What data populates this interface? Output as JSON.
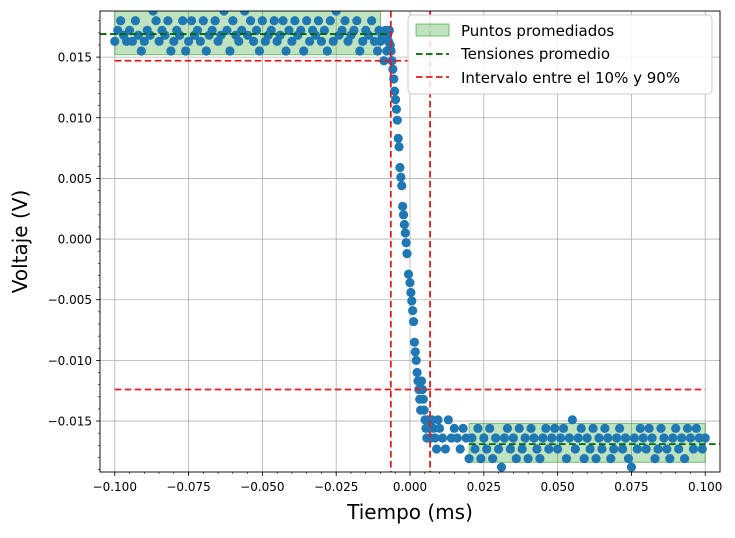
{
  "chart_data": {
    "type": "scatter",
    "xlabel": "Tiempo (ms)",
    "ylabel": "Voltaje (V)",
    "xlim": [
      -0.105,
      0.105
    ],
    "ylim": [
      -0.0192,
      0.0188
    ],
    "x_ticks": [
      -0.1,
      -0.075,
      -0.05,
      -0.025,
      0.0,
      0.025,
      0.05,
      0.075,
      0.1
    ],
    "x_tick_labels": [
      "−0.100",
      "−0.075",
      "−0.050",
      "−0.025",
      "0.000",
      "0.025",
      "0.050",
      "0.075",
      "0.100"
    ],
    "y_ticks": [
      -0.015,
      -0.01,
      -0.005,
      0.0,
      0.005,
      0.01,
      0.015
    ],
    "y_tick_labels": [
      "−0.015",
      "−0.010",
      "−0.005",
      "0.000",
      "0.005",
      "0.010",
      "0.015"
    ],
    "grid": true,
    "legend_position": "top-right",
    "legend": [
      {
        "label": "Puntos promediados",
        "kind": "patch",
        "color": "#2ca02c"
      },
      {
        "label": "Tensiones promedio",
        "kind": "dashed-line",
        "color": "#006400"
      },
      {
        "label": "Intervalo entre el 10% y 90%",
        "kind": "dashed-line",
        "color": "#e41a1c"
      }
    ],
    "colors": {
      "points": "#1f77b4",
      "shade": "#2ca02c",
      "mean_line": "#006400",
      "interval_line": "#e41a1c"
    },
    "averaged_regions": [
      {
        "x": [
          -0.1,
          -0.01
        ],
        "y": [
          0.0152,
          0.0188
        ]
      },
      {
        "x": [
          0.02,
          0.1
        ],
        "y": [
          -0.0184,
          -0.0152
        ]
      }
    ],
    "mean_voltages": [
      {
        "x": [
          -0.105,
          -0.006
        ],
        "y": 0.0169
      },
      {
        "x": [
          0.02,
          0.105
        ],
        "y": -0.0169
      }
    ],
    "interval_lines": {
      "vertical_x": [
        -0.0065,
        0.0068
      ],
      "horizontal": [
        {
          "x": [
            -0.1,
            0.0
          ],
          "y": 0.0147
        },
        {
          "x": [
            -0.1,
            0.1
          ],
          "y": -0.0124
        }
      ]
    },
    "series": [
      {
        "marker": "circle",
        "points": [
          [
            -0.1,
            0.0163
          ],
          [
            -0.099,
            0.0172
          ],
          [
            -0.098,
            0.018
          ],
          [
            -0.097,
            0.0168
          ],
          [
            -0.096,
            0.0163
          ],
          [
            -0.095,
            0.0172
          ],
          [
            -0.094,
            0.0163
          ],
          [
            -0.093,
            0.018
          ],
          [
            -0.092,
            0.0168
          ],
          [
            -0.091,
            0.0155
          ],
          [
            -0.09,
            0.0163
          ],
          [
            -0.089,
            0.0172
          ],
          [
            -0.088,
            0.0168
          ],
          [
            -0.087,
            0.0188
          ],
          [
            -0.086,
            0.018
          ],
          [
            -0.085,
            0.0163
          ],
          [
            -0.084,
            0.0172
          ],
          [
            -0.083,
            0.0168
          ],
          [
            -0.082,
            0.018
          ],
          [
            -0.081,
            0.0155
          ],
          [
            -0.08,
            0.0163
          ],
          [
            -0.079,
            0.0172
          ],
          [
            -0.078,
            0.0168
          ],
          [
            -0.077,
            0.018
          ],
          [
            -0.076,
            0.0155
          ],
          [
            -0.075,
            0.0163
          ],
          [
            -0.074,
            0.018
          ],
          [
            -0.073,
            0.0168
          ],
          [
            -0.072,
            0.0172
          ],
          [
            -0.071,
            0.0163
          ],
          [
            -0.07,
            0.018
          ],
          [
            -0.069,
            0.0155
          ],
          [
            -0.068,
            0.0168
          ],
          [
            -0.067,
            0.0172
          ],
          [
            -0.066,
            0.018
          ],
          [
            -0.065,
            0.0163
          ],
          [
            -0.064,
            0.0168
          ],
          [
            -0.063,
            0.0188
          ],
          [
            -0.062,
            0.0172
          ],
          [
            -0.061,
            0.0155
          ],
          [
            -0.06,
            0.018
          ],
          [
            -0.059,
            0.0168
          ],
          [
            -0.058,
            0.0163
          ],
          [
            -0.057,
            0.0172
          ],
          [
            -0.056,
            0.0188
          ],
          [
            -0.055,
            0.0168
          ],
          [
            -0.054,
            0.018
          ],
          [
            -0.053,
            0.0163
          ],
          [
            -0.052,
            0.0172
          ],
          [
            -0.051,
            0.0155
          ],
          [
            -0.05,
            0.018
          ],
          [
            -0.049,
            0.0163
          ],
          [
            -0.048,
            0.0168
          ],
          [
            -0.047,
            0.0172
          ],
          [
            -0.046,
            0.018
          ],
          [
            -0.045,
            0.0163
          ],
          [
            -0.044,
            0.0168
          ],
          [
            -0.043,
            0.018
          ],
          [
            -0.042,
            0.0155
          ],
          [
            -0.041,
            0.0172
          ],
          [
            -0.04,
            0.0163
          ],
          [
            -0.039,
            0.018
          ],
          [
            -0.038,
            0.0168
          ],
          [
            -0.037,
            0.0172
          ],
          [
            -0.036,
            0.0155
          ],
          [
            -0.035,
            0.018
          ],
          [
            -0.034,
            0.0163
          ],
          [
            -0.033,
            0.0172
          ],
          [
            -0.032,
            0.0168
          ],
          [
            -0.031,
            0.018
          ],
          [
            -0.03,
            0.0163
          ],
          [
            -0.029,
            0.0172
          ],
          [
            -0.028,
            0.0155
          ],
          [
            -0.027,
            0.018
          ],
          [
            -0.026,
            0.0163
          ],
          [
            -0.025,
            0.0188
          ],
          [
            -0.024,
            0.0168
          ],
          [
            -0.023,
            0.0172
          ],
          [
            -0.022,
            0.018
          ],
          [
            -0.021,
            0.0163
          ],
          [
            -0.02,
            0.0168
          ],
          [
            -0.019,
            0.0172
          ],
          [
            -0.018,
            0.018
          ],
          [
            -0.017,
            0.0155
          ],
          [
            -0.016,
            0.0163
          ],
          [
            -0.015,
            0.0172
          ],
          [
            -0.014,
            0.0168
          ],
          [
            -0.013,
            0.018
          ],
          [
            -0.012,
            0.0163
          ],
          [
            -0.011,
            0.0155
          ],
          [
            -0.0105,
            0.0172
          ],
          [
            -0.01,
            0.0163
          ],
          [
            -0.0095,
            0.0168
          ],
          [
            -0.0088,
            0.0147
          ],
          [
            -0.0083,
            0.0172
          ],
          [
            -0.0079,
            0.0155
          ],
          [
            -0.0076,
            0.0168
          ],
          [
            -0.0073,
            0.0163
          ],
          [
            -0.007,
            0.0172
          ],
          [
            -0.0067,
            0.016
          ],
          [
            -0.0064,
            0.0155
          ],
          [
            -0.0061,
            0.0147
          ],
          [
            -0.0058,
            0.014
          ],
          [
            -0.0055,
            0.0132
          ],
          [
            -0.0052,
            0.0122
          ],
          [
            -0.0049,
            0.0115
          ],
          [
            -0.0046,
            0.0107
          ],
          [
            -0.0043,
            0.0098
          ],
          [
            -0.004,
            0.0083
          ],
          [
            -0.0037,
            0.0076
          ],
          [
            -0.0034,
            0.0059
          ],
          [
            -0.0031,
            0.0051
          ],
          [
            -0.0028,
            0.0044
          ],
          [
            -0.0025,
            0.0027
          ],
          [
            -0.0022,
            0.002
          ],
          [
            -0.0019,
            0.0012
          ],
          [
            -0.0016,
            0.0005
          ],
          [
            -0.0013,
            -0.0003
          ],
          [
            -0.001,
            -0.0012
          ],
          [
            -0.0005,
            -0.0029
          ],
          [
            0.0,
            -0.0036
          ],
          [
            0.0003,
            -0.0044
          ],
          [
            0.0006,
            -0.0051
          ],
          [
            0.0009,
            -0.0059
          ],
          [
            0.0012,
            -0.0068
          ],
          [
            0.0015,
            -0.0085
          ],
          [
            0.0018,
            -0.0093
          ],
          [
            0.0021,
            -0.01
          ],
          [
            0.0024,
            -0.011
          ],
          [
            0.0027,
            -0.0117
          ],
          [
            0.003,
            -0.0124
          ],
          [
            0.0033,
            -0.0132
          ],
          [
            0.0036,
            -0.0141
          ],
          [
            0.0039,
            -0.0117
          ],
          [
            0.0042,
            -0.0124
          ],
          [
            0.0045,
            -0.0132
          ],
          [
            0.0048,
            -0.0141
          ],
          [
            0.0051,
            -0.0149
          ],
          [
            0.0054,
            -0.0156
          ],
          [
            0.0057,
            -0.0164
          ],
          [
            0.006,
            -0.0149
          ],
          [
            0.0065,
            -0.0156
          ],
          [
            0.007,
            -0.0164
          ],
          [
            0.0075,
            -0.0149
          ],
          [
            0.008,
            -0.0156
          ],
          [
            0.0085,
            -0.0164
          ],
          [
            0.009,
            -0.0173
          ],
          [
            0.0095,
            -0.0149
          ],
          [
            0.01,
            -0.0156
          ],
          [
            0.011,
            -0.0164
          ],
          [
            0.012,
            -0.0173
          ],
          [
            0.013,
            -0.0149
          ],
          [
            0.014,
            -0.0164
          ],
          [
            0.015,
            -0.0156
          ],
          [
            0.016,
            -0.0164
          ],
          [
            0.017,
            -0.0173
          ],
          [
            0.018,
            -0.0156
          ],
          [
            0.019,
            -0.0164
          ],
          [
            0.02,
            -0.0181
          ],
          [
            0.021,
            -0.0164
          ],
          [
            0.022,
            -0.0173
          ],
          [
            0.023,
            -0.0156
          ],
          [
            0.024,
            -0.0181
          ],
          [
            0.025,
            -0.0164
          ],
          [
            0.026,
            -0.0173
          ],
          [
            0.027,
            -0.0156
          ],
          [
            0.028,
            -0.0181
          ],
          [
            0.029,
            -0.0164
          ],
          [
            0.03,
            -0.0173
          ],
          [
            0.031,
            -0.0188
          ],
          [
            0.032,
            -0.0164
          ],
          [
            0.033,
            -0.0156
          ],
          [
            0.034,
            -0.0173
          ],
          [
            0.035,
            -0.0164
          ],
          [
            0.036,
            -0.0181
          ],
          [
            0.037,
            -0.0156
          ],
          [
            0.038,
            -0.0173
          ],
          [
            0.039,
            -0.0164
          ],
          [
            0.04,
            -0.0181
          ],
          [
            0.041,
            -0.0156
          ],
          [
            0.042,
            -0.0164
          ],
          [
            0.043,
            -0.0173
          ],
          [
            0.044,
            -0.0181
          ],
          [
            0.045,
            -0.0164
          ],
          [
            0.046,
            -0.0156
          ],
          [
            0.047,
            -0.0173
          ],
          [
            0.048,
            -0.0164
          ],
          [
            0.049,
            -0.0156
          ],
          [
            0.05,
            -0.0173
          ],
          [
            0.051,
            -0.0164
          ],
          [
            0.052,
            -0.0156
          ],
          [
            0.053,
            -0.0181
          ],
          [
            0.054,
            -0.0164
          ],
          [
            0.055,
            -0.0149
          ],
          [
            0.056,
            -0.0173
          ],
          [
            0.057,
            -0.0164
          ],
          [
            0.058,
            -0.0156
          ],
          [
            0.059,
            -0.0181
          ],
          [
            0.06,
            -0.0164
          ],
          [
            0.061,
            -0.0173
          ],
          [
            0.062,
            -0.0156
          ],
          [
            0.063,
            -0.0181
          ],
          [
            0.064,
            -0.0164
          ],
          [
            0.065,
            -0.0173
          ],
          [
            0.066,
            -0.0156
          ],
          [
            0.067,
            -0.0164
          ],
          [
            0.068,
            -0.0181
          ],
          [
            0.069,
            -0.0173
          ],
          [
            0.07,
            -0.0164
          ],
          [
            0.071,
            -0.0156
          ],
          [
            0.072,
            -0.0173
          ],
          [
            0.073,
            -0.0164
          ],
          [
            0.074,
            -0.0181
          ],
          [
            0.075,
            -0.0188
          ],
          [
            0.076,
            -0.0164
          ],
          [
            0.077,
            -0.0173
          ],
          [
            0.078,
            -0.0156
          ],
          [
            0.079,
            -0.0164
          ],
          [
            0.08,
            -0.0173
          ],
          [
            0.081,
            -0.0156
          ],
          [
            0.082,
            -0.0164
          ],
          [
            0.083,
            -0.0181
          ],
          [
            0.084,
            -0.0173
          ],
          [
            0.085,
            -0.0156
          ],
          [
            0.086,
            -0.0164
          ],
          [
            0.087,
            -0.0173
          ],
          [
            0.088,
            -0.0181
          ],
          [
            0.089,
            -0.0164
          ],
          [
            0.09,
            -0.0156
          ],
          [
            0.091,
            -0.0173
          ],
          [
            0.092,
            -0.0164
          ],
          [
            0.093,
            -0.0181
          ],
          [
            0.094,
            -0.0156
          ],
          [
            0.095,
            -0.0164
          ],
          [
            0.096,
            -0.0173
          ],
          [
            0.097,
            -0.0156
          ],
          [
            0.098,
            -0.0164
          ],
          [
            0.099,
            -0.0173
          ],
          [
            0.1,
            -0.0164
          ]
        ]
      }
    ]
  }
}
